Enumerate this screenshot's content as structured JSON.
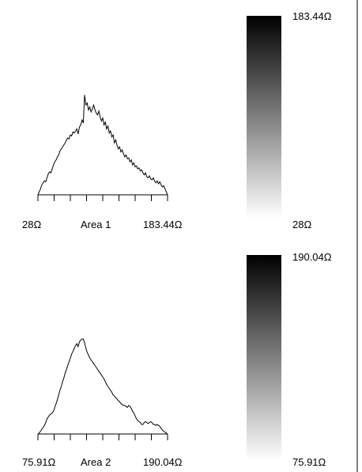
{
  "chart_data": [
    {
      "type": "area",
      "title": "",
      "xlabel": "Area 1",
      "x_min_label": "28Ω",
      "x_max_label": "183.44Ω",
      "colorbar": {
        "max_label": "183.44Ω",
        "min_label": "28Ω",
        "from_color": "#ffffff",
        "to_color": "#000000"
      },
      "x": [
        0,
        1,
        2,
        3,
        4,
        5,
        6,
        7,
        8,
        9,
        10,
        11,
        12,
        13,
        14,
        15,
        16,
        17,
        18,
        19,
        20,
        21,
        22,
        23,
        24,
        25,
        26,
        27,
        28,
        29,
        30,
        31,
        32,
        33,
        34,
        35,
        36,
        37,
        38,
        39,
        40,
        41,
        42,
        43,
        44,
        45,
        46,
        47,
        48,
        49,
        50,
        51,
        52,
        53,
        54,
        55,
        56,
        57,
        58,
        59,
        60,
        61,
        62,
        63,
        64,
        65,
        66,
        67,
        68,
        69,
        70,
        71,
        72,
        73,
        74,
        75,
        76,
        77,
        78,
        79,
        80,
        81,
        82,
        83,
        84,
        85,
        86,
        87,
        88,
        89,
        90,
        91,
        92,
        93,
        94,
        95,
        96,
        97,
        98,
        99,
        100
      ],
      "y": [
        0,
        0.03,
        0.06,
        0.1,
        0.12,
        0.14,
        0.13,
        0.17,
        0.21,
        0.23,
        0.22,
        0.26,
        0.3,
        0.33,
        0.35,
        0.38,
        0.4,
        0.44,
        0.46,
        0.48,
        0.5,
        0.52,
        0.55,
        0.57,
        0.56,
        0.6,
        0.59,
        0.63,
        0.62,
        0.64,
        0.66,
        0.61,
        0.68,
        0.7,
        0.75,
        0.72,
        1.0,
        0.9,
        0.92,
        0.85,
        0.88,
        0.83,
        0.86,
        0.9,
        0.85,
        0.82,
        0.8,
        0.84,
        0.78,
        0.74,
        0.77,
        0.7,
        0.73,
        0.66,
        0.69,
        0.62,
        0.64,
        0.58,
        0.6,
        0.52,
        0.55,
        0.5,
        0.46,
        0.48,
        0.43,
        0.45,
        0.41,
        0.38,
        0.4,
        0.36,
        0.37,
        0.33,
        0.35,
        0.3,
        0.32,
        0.28,
        0.29,
        0.26,
        0.27,
        0.24,
        0.25,
        0.22,
        0.2,
        0.22,
        0.18,
        0.17,
        0.19,
        0.16,
        0.15,
        0.17,
        0.14,
        0.12,
        0.14,
        0.11,
        0.13,
        0.1,
        0.08,
        0.09,
        0.06,
        0.03,
        0.0
      ],
      "ylim": [
        0,
        1
      ]
    },
    {
      "type": "area",
      "title": "",
      "xlabel": "Area 2",
      "x_min_label": "75.91Ω",
      "x_max_label": "190.04Ω",
      "colorbar": {
        "max_label": "190.04Ω",
        "min_label": "75.91Ω",
        "from_color": "#ffffff",
        "to_color": "#000000"
      },
      "x": [
        0,
        1,
        2,
        3,
        4,
        5,
        6,
        7,
        8,
        9,
        10,
        11,
        12,
        13,
        14,
        15,
        16,
        17,
        18,
        19,
        20,
        21,
        22,
        23,
        24,
        25,
        26,
        27,
        28,
        29,
        30,
        31,
        32,
        33,
        34,
        35,
        36,
        37,
        38,
        39,
        40,
        41,
        42,
        43,
        44,
        45,
        46,
        47,
        48,
        49,
        50,
        51,
        52,
        53,
        54,
        55,
        56,
        57,
        58,
        59,
        60,
        61,
        62,
        63,
        64,
        65,
        66,
        67,
        68,
        69,
        70,
        71,
        72,
        73,
        74,
        75,
        76,
        77,
        78,
        79,
        80,
        81,
        82,
        83,
        84,
        85,
        86,
        87,
        88,
        89,
        90,
        91,
        92,
        93,
        94,
        95,
        96,
        97,
        98,
        99,
        100
      ],
      "y": [
        0,
        0.01,
        0.03,
        0.05,
        0.07,
        0.09,
        0.12,
        0.16,
        0.18,
        0.2,
        0.21,
        0.22,
        0.24,
        0.28,
        0.32,
        0.36,
        0.41,
        0.46,
        0.5,
        0.55,
        0.59,
        0.64,
        0.68,
        0.72,
        0.76,
        0.8,
        0.84,
        0.87,
        0.9,
        0.93,
        0.95,
        0.92,
        0.97,
        0.99,
        1.0,
        1.0,
        0.96,
        0.9,
        0.86,
        0.83,
        0.8,
        0.78,
        0.76,
        0.74,
        0.72,
        0.7,
        0.68,
        0.66,
        0.64,
        0.62,
        0.6,
        0.58,
        0.55,
        0.52,
        0.5,
        0.48,
        0.46,
        0.44,
        0.41,
        0.4,
        0.38,
        0.37,
        0.35,
        0.34,
        0.32,
        0.31,
        0.3,
        0.3,
        0.29,
        0.28,
        0.3,
        0.29,
        0.27,
        0.24,
        0.22,
        0.19,
        0.16,
        0.14,
        0.13,
        0.12,
        0.1,
        0.1,
        0.12,
        0.13,
        0.12,
        0.11,
        0.12,
        0.13,
        0.12,
        0.1,
        0.1,
        0.09,
        0.1,
        0.09,
        0.08,
        0.06,
        0.04,
        0.03,
        0.02,
        0.01,
        0.0
      ],
      "ylim": [
        0,
        1
      ]
    }
  ]
}
